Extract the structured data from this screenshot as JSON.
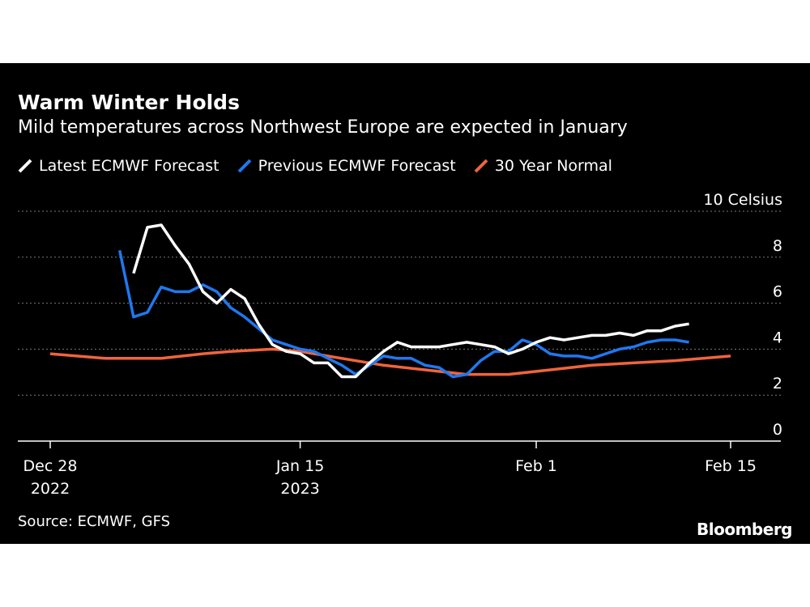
{
  "title": "Warm Winter Holds",
  "subtitle": "Mild temperatures across Northwest Europe are expected in January",
  "source": "Source: ECMWF, GFS",
  "brand": "Bloomberg",
  "colors": {
    "background": "#000000",
    "latest": "#ffffff",
    "previous": "#1f78f0",
    "normal": "#f0643c",
    "grid": "#7a7a7a"
  },
  "chart_data": {
    "type": "line",
    "ylabel": "10 Celsius",
    "ylim": [
      0,
      10
    ],
    "yticks": [
      {
        "value": 10,
        "label": "10 Celsius"
      },
      {
        "value": 8,
        "label": "8"
      },
      {
        "value": 6,
        "label": "6"
      },
      {
        "value": 4,
        "label": "4"
      },
      {
        "value": 2,
        "label": "2"
      },
      {
        "value": 0,
        "label": "0"
      }
    ],
    "xlim": [
      "2022-12-28",
      "2023-02-17"
    ],
    "xticks": [
      {
        "date": "2022-12-28",
        "label": "Dec 28",
        "sublabel": "2022"
      },
      {
        "date": "2023-01-15",
        "label": "Jan 15",
        "sublabel": "2023"
      },
      {
        "date": "2023-02-01",
        "label": "Feb 1",
        "sublabel": ""
      },
      {
        "date": "2023-02-15",
        "label": "Feb 15",
        "sublabel": ""
      }
    ],
    "grid": true,
    "legend_position": "top-left",
    "series": [
      {
        "name": "Latest ECMWF Forecast",
        "color": "#ffffff",
        "x": [
          "2023-01-03",
          "2023-01-04",
          "2023-01-05",
          "2023-01-06",
          "2023-01-07",
          "2023-01-08",
          "2023-01-09",
          "2023-01-10",
          "2023-01-11",
          "2023-01-12",
          "2023-01-13",
          "2023-01-14",
          "2023-01-15",
          "2023-01-16",
          "2023-01-17",
          "2023-01-18",
          "2023-01-19",
          "2023-01-20",
          "2023-01-21",
          "2023-01-22",
          "2023-01-23",
          "2023-01-24",
          "2023-01-25",
          "2023-01-26",
          "2023-01-27",
          "2023-01-28",
          "2023-01-29",
          "2023-01-30",
          "2023-01-31",
          "2023-02-01",
          "2023-02-02",
          "2023-02-03",
          "2023-02-04",
          "2023-02-05",
          "2023-02-06",
          "2023-02-07",
          "2023-02-08",
          "2023-02-09",
          "2023-02-10",
          "2023-02-11",
          "2023-02-12"
        ],
        "values": [
          7.3,
          9.3,
          9.4,
          8.5,
          7.7,
          6.5,
          6.0,
          6.6,
          6.2,
          5.1,
          4.2,
          3.9,
          3.8,
          3.4,
          3.4,
          2.8,
          2.8,
          3.4,
          3.9,
          4.3,
          4.1,
          4.1,
          4.1,
          4.2,
          4.3,
          4.2,
          4.1,
          3.8,
          4.0,
          4.3,
          4.5,
          4.4,
          4.5,
          4.6,
          4.6,
          4.7,
          4.6,
          4.8,
          4.8,
          5.0,
          5.1
        ]
      },
      {
        "name": "Previous ECMWF Forecast",
        "color": "#1f78f0",
        "x": [
          "2023-01-02",
          "2023-01-03",
          "2023-01-04",
          "2023-01-05",
          "2023-01-06",
          "2023-01-07",
          "2023-01-08",
          "2023-01-09",
          "2023-01-10",
          "2023-01-11",
          "2023-01-12",
          "2023-01-13",
          "2023-01-14",
          "2023-01-15",
          "2023-01-16",
          "2023-01-17",
          "2023-01-18",
          "2023-01-19",
          "2023-01-20",
          "2023-01-21",
          "2023-01-22",
          "2023-01-23",
          "2023-01-24",
          "2023-01-25",
          "2023-01-26",
          "2023-01-27",
          "2023-01-28",
          "2023-01-29",
          "2023-01-30",
          "2023-01-31",
          "2023-02-01",
          "2023-02-02",
          "2023-02-03",
          "2023-02-04",
          "2023-02-05",
          "2023-02-06",
          "2023-02-07",
          "2023-02-08",
          "2023-02-09",
          "2023-02-10",
          "2023-02-11",
          "2023-02-12"
        ],
        "values": [
          8.3,
          5.4,
          5.6,
          6.7,
          6.5,
          6.5,
          6.8,
          6.5,
          5.8,
          5.4,
          4.9,
          4.4,
          4.2,
          4.0,
          3.9,
          3.6,
          3.3,
          2.9,
          3.3,
          3.7,
          3.6,
          3.6,
          3.3,
          3.2,
          2.8,
          2.9,
          3.5,
          3.9,
          3.9,
          4.4,
          4.2,
          3.8,
          3.7,
          3.7,
          3.6,
          3.8,
          4.0,
          4.1,
          4.3,
          4.4,
          4.4,
          4.3
        ]
      },
      {
        "name": "30 Year Normal",
        "color": "#f0643c",
        "x": [
          "2022-12-28",
          "2023-01-01",
          "2023-01-05",
          "2023-01-08",
          "2023-01-10",
          "2023-01-13",
          "2023-01-15",
          "2023-01-18",
          "2023-01-21",
          "2023-01-24",
          "2023-01-27",
          "2023-01-30",
          "2023-02-02",
          "2023-02-05",
          "2023-02-08",
          "2023-02-11",
          "2023-02-13",
          "2023-02-15"
        ],
        "values": [
          3.8,
          3.6,
          3.6,
          3.8,
          3.9,
          4.0,
          3.9,
          3.6,
          3.3,
          3.1,
          2.9,
          2.9,
          3.1,
          3.3,
          3.4,
          3.5,
          3.6,
          3.7
        ]
      }
    ]
  }
}
